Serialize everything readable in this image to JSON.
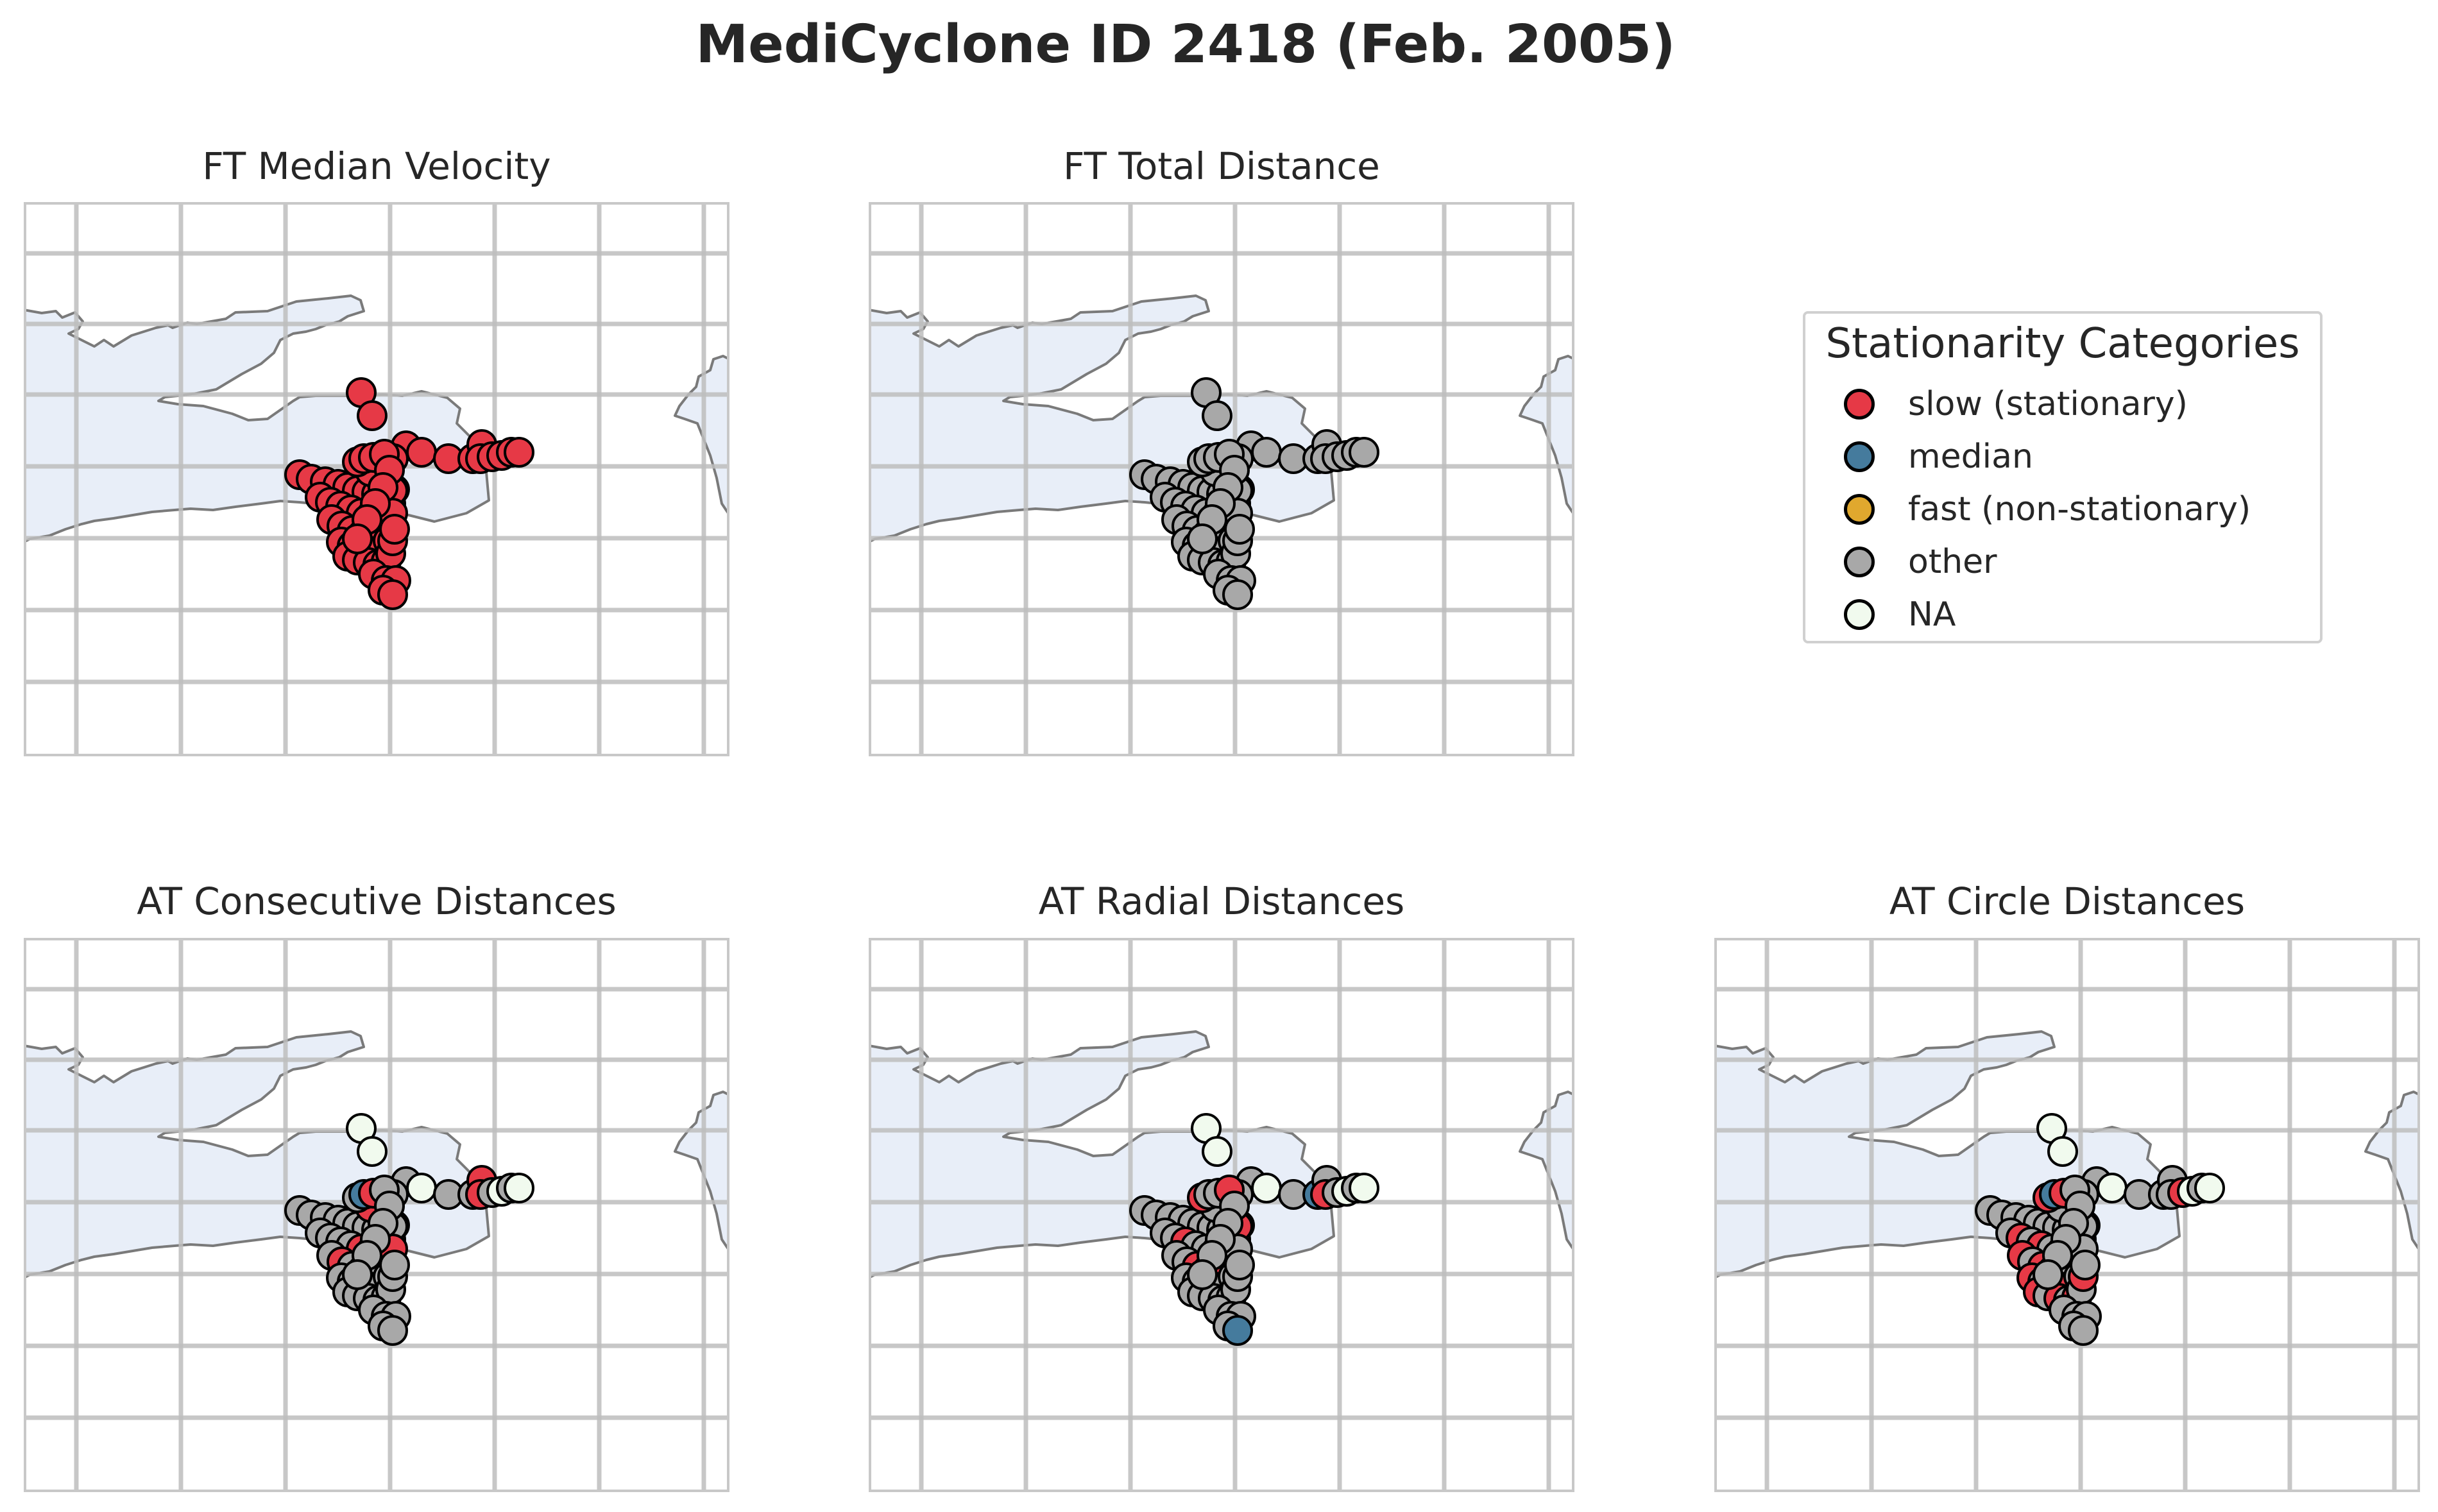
{
  "title": "MediCyclone ID 2418 (Feb. 2005)",
  "colors": {
    "slow": "#E63946",
    "median": "#457B9D",
    "fast": "#E0A82E",
    "other": "#A8A8A8",
    "na": "#F1FAEE",
    "land_sea": "#E8EEF8",
    "coast": "#7A7A7A",
    "grid": "#BDBDBD"
  },
  "legend": {
    "title": "Stationarity Categories",
    "items": [
      {
        "label": "slow (stationary)",
        "color_key": "slow"
      },
      {
        "label": "median",
        "color_key": "median"
      },
      {
        "label": "fast (non-stationary)",
        "color_key": "fast"
      },
      {
        "label": "other",
        "color_key": "other"
      },
      {
        "label": "NA",
        "color_key": "na"
      }
    ]
  },
  "panels": [
    {
      "title": "FT Median Velocity"
    },
    {
      "title": "FT Total Distance"
    },
    {
      "title": "AT Consecutive Distances"
    },
    {
      "title": "AT Radial Distances"
    },
    {
      "title": "AT Circle Distances"
    }
  ]
}
